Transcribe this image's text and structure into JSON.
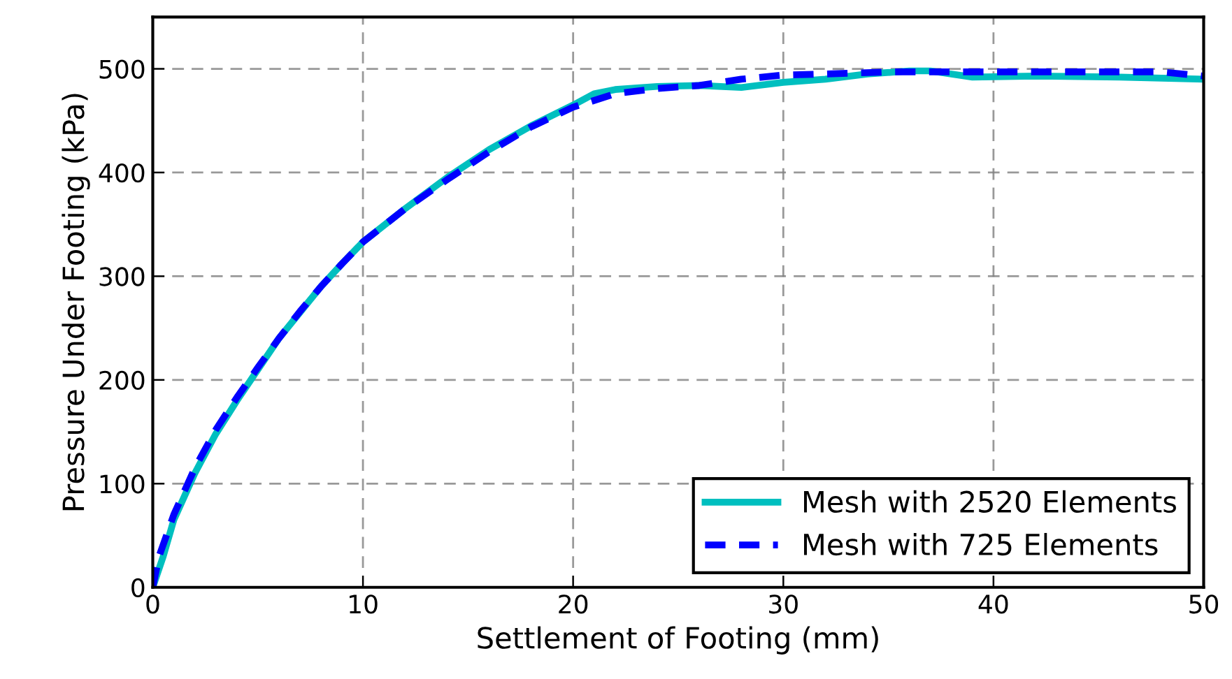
{
  "chart_data": {
    "type": "line",
    "xlabel": "Settlement of Footing (mm)",
    "ylabel": "Pressure Under Footing (kPa)",
    "xlim": [
      0,
      50
    ],
    "ylim": [
      0,
      550
    ],
    "xticks": [
      0,
      10,
      20,
      30,
      40,
      50
    ],
    "yticks": [
      0,
      100,
      200,
      300,
      400,
      500
    ],
    "grid": true,
    "legend": "bottom right",
    "series": [
      {
        "name": "Mesh with 2520 Elements",
        "color": "#00bfbf",
        "line_style": "solid",
        "x": [
          0,
          0.5,
          1,
          2,
          3,
          4,
          5,
          6,
          7,
          8,
          9,
          10,
          12,
          14,
          16,
          18,
          20,
          21,
          22,
          24,
          26,
          28,
          30,
          32,
          34,
          36,
          37,
          38,
          39,
          42,
          46,
          50
        ],
        "values": [
          0,
          30,
          65,
          110,
          148,
          180,
          210,
          240,
          265,
          290,
          312,
          333,
          365,
          395,
          422,
          445,
          465,
          476,
          480,
          483,
          484,
          482,
          487,
          490,
          495,
          498,
          498,
          495,
          492,
          493,
          492,
          490
        ]
      },
      {
        "name": "Mesh with 725 Elements",
        "color": "#0000ff",
        "line_style": "dashed",
        "x": [
          0,
          0.3,
          1,
          2,
          3,
          4,
          5,
          6,
          7,
          8,
          9,
          10,
          12,
          14,
          16,
          18,
          20,
          22,
          24,
          26,
          28,
          30,
          32,
          35,
          37,
          40,
          44,
          48,
          50
        ],
        "values": [
          0,
          30,
          70,
          115,
          152,
          183,
          212,
          240,
          266,
          290,
          312,
          333,
          365,
          393,
          420,
          444,
          463,
          476,
          481,
          484,
          490,
          494,
          495,
          497,
          497,
          497,
          497,
          497,
          493
        ]
      }
    ]
  }
}
